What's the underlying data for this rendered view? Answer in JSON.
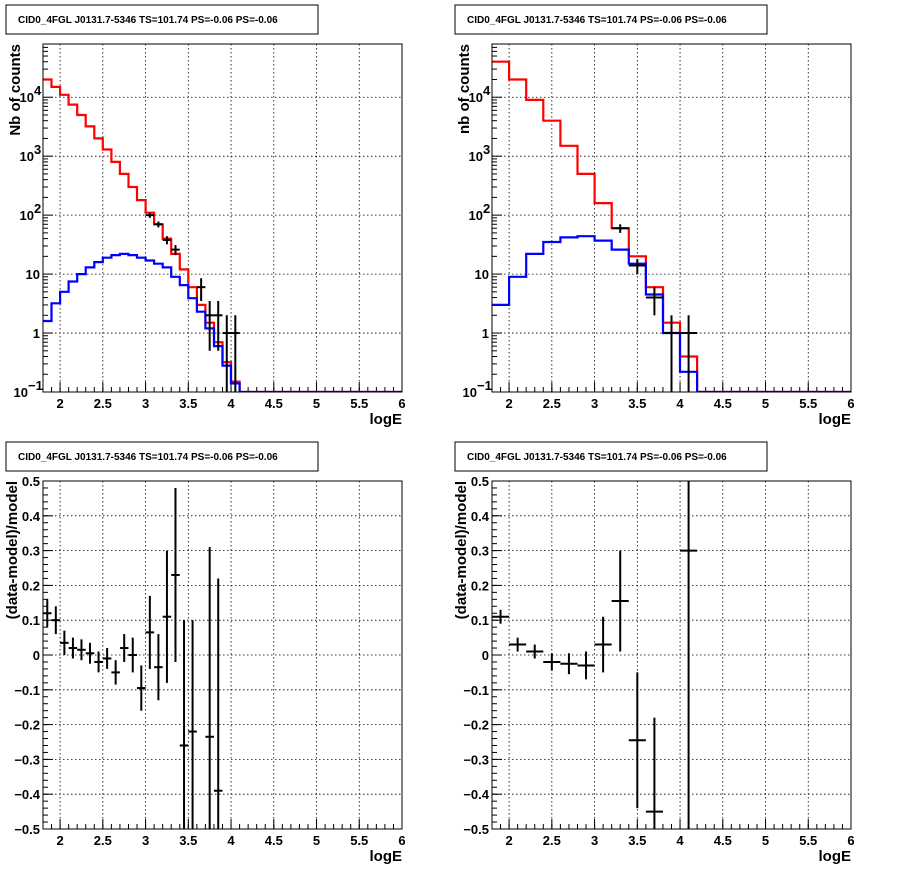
{
  "chart_data": [
    {
      "type": "histogram",
      "title": "CID0_4FGL J0131.7-5346 TS=101.74 PS=-0.06 PS=-0.06",
      "xlabel": "logE",
      "ylabel": "Nb of counts",
      "xlim": [
        1.8,
        6.0
      ],
      "ylim": [
        0.1,
        80000
      ],
      "yscale": "log",
      "grid": true,
      "x_ticks": [
        "2",
        "2.5",
        "3",
        "3.5",
        "4",
        "4.5",
        "5",
        "5.5",
        "6"
      ],
      "y_ticks": [
        {
          "v": 0.1,
          "base": "10",
          "exp": "−1"
        },
        {
          "v": 1,
          "base": "1",
          "exp": ""
        },
        {
          "v": 10,
          "base": "10",
          "exp": ""
        },
        {
          "v": 100,
          "base": "10",
          "exp": "2"
        },
        {
          "v": 1000,
          "base": "10",
          "exp": "3"
        },
        {
          "v": 10000,
          "base": "10",
          "exp": "4"
        }
      ],
      "series": [
        {
          "color": "#ff0000",
          "kind": "step",
          "x_start": 1.8,
          "bin_width": 0.1,
          "values": [
            20000,
            15000,
            11000,
            7500,
            5000,
            3200,
            2000,
            1300,
            800,
            500,
            300,
            180,
            110,
            70,
            40,
            22,
            12,
            6,
            3,
            1.5,
            0.7,
            0.32,
            0.15,
            0.1,
            0.1,
            0.1,
            0.1,
            0.1,
            0.1,
            0.1,
            0.1,
            0.1,
            0.1,
            0.1,
            0.1,
            0.1,
            0.1,
            0.1,
            0.1,
            0.1,
            0.1,
            0.1
          ]
        },
        {
          "color": "#0000ff",
          "kind": "step",
          "x_start": 1.8,
          "bin_width": 0.1,
          "values": [
            1.6,
            3.2,
            5,
            7.5,
            10,
            13,
            16,
            19,
            21,
            22,
            21,
            19,
            17,
            15,
            13,
            9,
            6.5,
            3.9,
            2.3,
            1.2,
            0.6,
            0.28,
            0.14,
            0.1,
            0.1,
            0.1,
            0.1,
            0.1,
            0.1,
            0.1,
            0.1,
            0.1,
            0.1,
            0.1,
            0.1,
            0.1,
            0.1,
            0.1,
            0.1,
            0.1,
            0.1,
            0.1
          ]
        },
        {
          "color": "#000000",
          "kind": "errorbar",
          "half_width": 0.05,
          "points": [
            {
              "x": 3.05,
              "y": 100,
              "lo": 90,
              "hi": 110
            },
            {
              "x": 3.15,
              "y": 70,
              "lo": 62,
              "hi": 78
            },
            {
              "x": 3.25,
              "y": 38,
              "lo": 32,
              "hi": 44
            },
            {
              "x": 3.35,
              "y": 26,
              "lo": 21,
              "hi": 31
            },
            {
              "x": 3.65,
              "y": 6,
              "lo": 3.5,
              "hi": 8.5
            },
            {
              "x": 3.75,
              "y": 2,
              "lo": 0.5,
              "hi": 3.5
            },
            {
              "x": 3.85,
              "y": 2,
              "lo": 0.5,
              "hi": 3.5
            },
            {
              "x": 3.95,
              "y": 1,
              "lo": 0.1,
              "hi": 2
            },
            {
              "x": 4.05,
              "y": 1,
              "lo": 0.1,
              "hi": 2
            }
          ]
        }
      ]
    },
    {
      "type": "histogram",
      "title": "CID0_4FGL J0131.7-5346 TS=101.74 PS=-0.06 PS=-0.06",
      "xlabel": "logE",
      "ylabel": "nb of counts",
      "xlim": [
        1.8,
        6.0
      ],
      "ylim": [
        0.1,
        80000
      ],
      "yscale": "log",
      "grid": true,
      "x_ticks": [
        "2",
        "2.5",
        "3",
        "3.5",
        "4",
        "4.5",
        "5",
        "5.5",
        "6"
      ],
      "y_ticks": [
        {
          "v": 0.1,
          "base": "10",
          "exp": "−1"
        },
        {
          "v": 1,
          "base": "1",
          "exp": ""
        },
        {
          "v": 10,
          "base": "10",
          "exp": ""
        },
        {
          "v": 100,
          "base": "10",
          "exp": "2"
        },
        {
          "v": 1000,
          "base": "10",
          "exp": "3"
        },
        {
          "v": 10000,
          "base": "10",
          "exp": "4"
        }
      ],
      "series": [
        {
          "color": "#ff0000",
          "kind": "step",
          "x_start": 1.8,
          "bin_width": 0.2,
          "values": [
            40000,
            20000,
            9000,
            4000,
            1500,
            500,
            160,
            60,
            20,
            6,
            1.5,
            0.4,
            0.1,
            0.1,
            0.1,
            0.1,
            0.1,
            0.1,
            0.1,
            0.1,
            0.1
          ]
        },
        {
          "color": "#0000ff",
          "kind": "step",
          "x_start": 1.8,
          "bin_width": 0.2,
          "values": [
            3,
            9,
            22,
            35,
            42,
            44,
            37,
            26,
            15,
            4.5,
            1,
            0.22,
            0.1,
            0.1,
            0.1,
            0.1,
            0.1,
            0.1,
            0.1,
            0.1,
            0.1
          ]
        },
        {
          "color": "#000000",
          "kind": "errorbar",
          "half_width": 0.1,
          "points": [
            {
              "x": 3.3,
              "y": 60,
              "lo": 50,
              "hi": 70
            },
            {
              "x": 3.5,
              "y": 14,
              "lo": 10,
              "hi": 18
            },
            {
              "x": 3.7,
              "y": 4,
              "lo": 2,
              "hi": 6
            },
            {
              "x": 3.9,
              "y": 1,
              "lo": 0.1,
              "hi": 2
            },
            {
              "x": 4.1,
              "y": 1,
              "lo": 0.1,
              "hi": 2
            }
          ]
        }
      ]
    },
    {
      "type": "errorbar",
      "title": "CID0_4FGL J0131.7-5346 TS=101.74 PS=-0.06 PS=-0.06",
      "xlabel": "logE",
      "ylabel": "(data-model)/model",
      "xlim": [
        1.8,
        6.0
      ],
      "ylim": [
        -0.5,
        0.5
      ],
      "grid": true,
      "x_ticks": [
        "2",
        "2.5",
        "3",
        "3.5",
        "4",
        "4.5",
        "5",
        "5.5",
        "6"
      ],
      "y_ticks": [
        "−0.5",
        "−0.4",
        "−0.3",
        "−0.2",
        "−0.1",
        "0",
        "0.1",
        "0.2",
        "0.3",
        "0.4",
        "0.5"
      ],
      "half_width": 0.05,
      "points": [
        {
          "x": 1.85,
          "y": 0.12,
          "lo": 0.08,
          "hi": 0.16
        },
        {
          "x": 1.95,
          "y": 0.1,
          "lo": 0.06,
          "hi": 0.14
        },
        {
          "x": 2.05,
          "y": 0.035,
          "lo": 0.0,
          "hi": 0.07
        },
        {
          "x": 2.15,
          "y": 0.02,
          "lo": -0.01,
          "hi": 0.05
        },
        {
          "x": 2.25,
          "y": 0.015,
          "lo": -0.015,
          "hi": 0.045
        },
        {
          "x": 2.35,
          "y": 0.005,
          "lo": -0.025,
          "hi": 0.035
        },
        {
          "x": 2.45,
          "y": -0.02,
          "lo": -0.05,
          "hi": 0.01
        },
        {
          "x": 2.55,
          "y": -0.01,
          "lo": -0.04,
          "hi": 0.02
        },
        {
          "x": 2.65,
          "y": -0.05,
          "lo": -0.085,
          "hi": -0.015
        },
        {
          "x": 2.75,
          "y": 0.02,
          "lo": -0.02,
          "hi": 0.06
        },
        {
          "x": 2.85,
          "y": 0.0,
          "lo": -0.05,
          "hi": 0.05
        },
        {
          "x": 2.95,
          "y": -0.095,
          "lo": -0.16,
          "hi": -0.03
        },
        {
          "x": 3.05,
          "y": 0.065,
          "lo": -0.04,
          "hi": 0.17
        },
        {
          "x": 3.15,
          "y": -0.035,
          "lo": -0.13,
          "hi": 0.06
        },
        {
          "x": 3.25,
          "y": 0.11,
          "lo": -0.08,
          "hi": 0.3
        },
        {
          "x": 3.35,
          "y": 0.23,
          "lo": -0.02,
          "hi": 0.48
        },
        {
          "x": 3.45,
          "y": -0.26,
          "lo": -0.62,
          "hi": 0.1
        },
        {
          "x": 3.55,
          "y": -0.22,
          "lo": -0.55,
          "hi": 0.1
        },
        {
          "x": 3.75,
          "y": -0.235,
          "lo": -0.78,
          "hi": 0.31
        },
        {
          "x": 3.85,
          "y": -0.39,
          "lo": -1.0,
          "hi": 0.22
        }
      ]
    },
    {
      "type": "errorbar",
      "title": "CID0_4FGL J0131.7-5346 TS=101.74 PS=-0.06 PS=-0.06",
      "xlabel": "logE",
      "ylabel": "(data-model)/model",
      "xlim": [
        1.8,
        6.0
      ],
      "ylim": [
        -0.5,
        0.5
      ],
      "grid": true,
      "x_ticks": [
        "2",
        "2.5",
        "3",
        "3.5",
        "4",
        "4.5",
        "5",
        "5.5",
        "6"
      ],
      "y_ticks": [
        "−0.5",
        "−0.4",
        "−0.3",
        "−0.2",
        "−0.1",
        "0",
        "0.1",
        "0.2",
        "0.3",
        "0.4",
        "0.5"
      ],
      "half_width": 0.1,
      "points": [
        {
          "x": 1.9,
          "y": 0.11,
          "lo": 0.09,
          "hi": 0.13
        },
        {
          "x": 2.1,
          "y": 0.03,
          "lo": 0.01,
          "hi": 0.05
        },
        {
          "x": 2.3,
          "y": 0.01,
          "lo": -0.01,
          "hi": 0.03
        },
        {
          "x": 2.5,
          "y": -0.02,
          "lo": -0.045,
          "hi": 0.005
        },
        {
          "x": 2.7,
          "y": -0.025,
          "lo": -0.055,
          "hi": 0.005
        },
        {
          "x": 2.9,
          "y": -0.03,
          "lo": -0.07,
          "hi": 0.01
        },
        {
          "x": 3.1,
          "y": 0.03,
          "lo": -0.05,
          "hi": 0.11
        },
        {
          "x": 3.3,
          "y": 0.155,
          "lo": 0.01,
          "hi": 0.3
        },
        {
          "x": 3.5,
          "y": -0.245,
          "lo": -0.44,
          "hi": -0.05
        },
        {
          "x": 3.7,
          "y": -0.45,
          "lo": -0.72,
          "hi": -0.18
        },
        {
          "x": 4.1,
          "y": 0.3,
          "lo": -0.9,
          "hi": 1.5
        }
      ]
    }
  ]
}
